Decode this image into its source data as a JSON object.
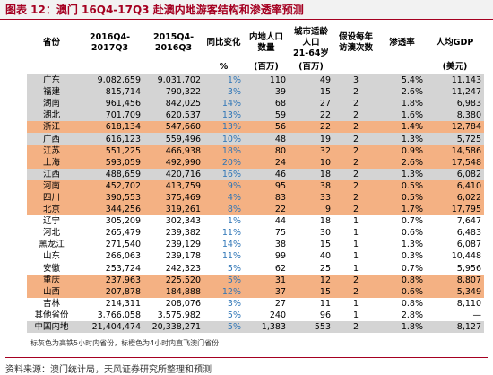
{
  "header": {
    "title": "图表 12：澳门 16Q4-17Q3 赴澳内地游客结构和渗透率预测"
  },
  "table": {
    "columns": [
      {
        "label": "省份"
      },
      {
        "label": "2016Q4-\n2017Q3"
      },
      {
        "label": "2015Q4-\n2016Q3"
      },
      {
        "label": "同比变化",
        "unit": "%"
      },
      {
        "label": "内地人口\n数量",
        "unit": "(百万)"
      },
      {
        "label": "城市适龄\n人口\n21-64岁",
        "unit": "(百万)"
      },
      {
        "label": "假设每年\n访澳次数"
      },
      {
        "label": "渗透率"
      },
      {
        "label": "人均GDP",
        "unit": "(美元)"
      }
    ],
    "rows": [
      {
        "color": "#d4d4d4",
        "cells": [
          "广东",
          "9,082,659",
          "9,031,702",
          "1%",
          "110",
          "49",
          "3",
          "5.4%",
          "11,143"
        ]
      },
      {
        "color": "#d4d4d4",
        "cells": [
          "福建",
          "815,714",
          "790,322",
          "3%",
          "39",
          "15",
          "2",
          "2.6%",
          "11,247"
        ]
      },
      {
        "color": "#d4d4d4",
        "cells": [
          "湖南",
          "961,456",
          "842,025",
          "14%",
          "68",
          "27",
          "2",
          "1.8%",
          "6,983"
        ]
      },
      {
        "color": "#d4d4d4",
        "cells": [
          "湖北",
          "701,709",
          "620,537",
          "13%",
          "59",
          "22",
          "2",
          "1.6%",
          "8,380"
        ]
      },
      {
        "color": "#f4b183",
        "cells": [
          "浙江",
          "618,134",
          "547,660",
          "13%",
          "56",
          "22",
          "2",
          "1.4%",
          "12,784"
        ]
      },
      {
        "color": "#d4d4d4",
        "cells": [
          "广西",
          "616,123",
          "559,496",
          "10%",
          "48",
          "19",
          "2",
          "1.3%",
          "5,725"
        ]
      },
      {
        "color": "#f4b183",
        "cells": [
          "江苏",
          "551,225",
          "466,938",
          "18%",
          "80",
          "32",
          "2",
          "0.9%",
          "14,586"
        ]
      },
      {
        "color": "#f4b183",
        "cells": [
          "上海",
          "593,059",
          "492,990",
          "20%",
          "24",
          "10",
          "2",
          "2.6%",
          "17,548"
        ]
      },
      {
        "color": "#d4d4d4",
        "cells": [
          "江西",
          "488,659",
          "420,716",
          "16%",
          "46",
          "18",
          "2",
          "1.3%",
          "6,082"
        ]
      },
      {
        "color": "#f4b183",
        "cells": [
          "河南",
          "452,702",
          "413,759",
          "9%",
          "95",
          "38",
          "2",
          "0.5%",
          "6,410"
        ]
      },
      {
        "color": "#f4b183",
        "cells": [
          "四川",
          "390,553",
          "375,469",
          "4%",
          "83",
          "33",
          "2",
          "0.5%",
          "6,022"
        ]
      },
      {
        "color": "#f4b183",
        "cells": [
          "北京",
          "344,256",
          "319,261",
          "8%",
          "22",
          "9",
          "2",
          "1.7%",
          "17,795"
        ]
      },
      {
        "cells": [
          "辽宁",
          "305,209",
          "302,343",
          "1%",
          "44",
          "18",
          "1",
          "0.7%",
          "7,647"
        ]
      },
      {
        "cells": [
          "河北",
          "265,479",
          "239,382",
          "11%",
          "75",
          "30",
          "1",
          "0.6%",
          "6,483"
        ]
      },
      {
        "cells": [
          "黑龙江",
          "271,540",
          "239,129",
          "14%",
          "38",
          "15",
          "1",
          "1.3%",
          "6,087"
        ]
      },
      {
        "cells": [
          "山东",
          "266,063",
          "239,178",
          "11%",
          "99",
          "40",
          "1",
          "0.3%",
          "10,448"
        ]
      },
      {
        "cells": [
          "安徽",
          "253,724",
          "242,323",
          "5%",
          "62",
          "25",
          "1",
          "0.7%",
          "5,956"
        ]
      },
      {
        "color": "#f4b183",
        "cells": [
          "重庆",
          "237,963",
          "225,520",
          "5%",
          "31",
          "12",
          "2",
          "0.8%",
          "8,807"
        ]
      },
      {
        "color": "#f4b183",
        "cells": [
          "山西",
          "207,878",
          "184,888",
          "12%",
          "37",
          "15",
          "2",
          "0.6%",
          "5,349"
        ]
      },
      {
        "cells": [
          "吉林",
          "214,311",
          "208,076",
          "3%",
          "27",
          "11",
          "1",
          "0.8%",
          "8,110"
        ]
      },
      {
        "cells": [
          "其他省份",
          "3,766,058",
          "3,575,982",
          "5%",
          "240",
          "96",
          "1",
          "2.8%",
          "—"
        ]
      },
      {
        "color": "#d4d4d4",
        "cells": [
          "中国内地",
          "21,404,474",
          "20,338,271",
          "5%",
          "1,383",
          "553",
          "2",
          "1.8%",
          "8,127"
        ]
      }
    ]
  },
  "footnote": "标灰色为高铁5小时内省份，标橙色为4小时内直飞澳门省份",
  "source": "资料来源：澳门统计局，天风证券研究所整理和预测"
}
